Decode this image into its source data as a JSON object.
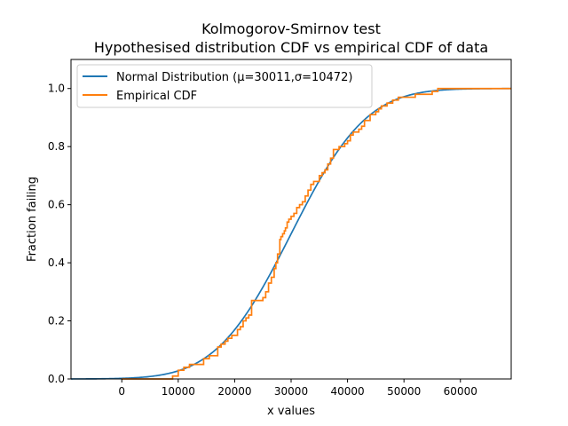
{
  "chart_data": {
    "type": "line",
    "title_line1": "Kolmogorov-Smirnov test",
    "title_line2": "Hypothesised distribution CDF vs empirical CDF of data",
    "xlabel": "x values",
    "ylabel": "Fraction failing",
    "xlim": [
      -9000,
      69000
    ],
    "ylim": [
      0,
      1.1
    ],
    "x_ticks": [
      0,
      10000,
      20000,
      30000,
      40000,
      50000,
      60000
    ],
    "y_ticks": [
      0.0,
      0.2,
      0.4,
      0.6,
      0.8,
      1.0
    ],
    "x_tick_labels": [
      "0",
      "10000",
      "20000",
      "30000",
      "40000",
      "50000",
      "60000"
    ],
    "y_tick_labels": [
      "0.0",
      "0.2",
      "0.4",
      "0.6",
      "0.8",
      "1.0"
    ],
    "grid": false,
    "legend_position": "top-left",
    "series": [
      {
        "name": "Normal Distribution (μ=30011,σ=10472)",
        "kind": "normal_cdf",
        "mu": 30011,
        "sigma": 10472,
        "color": "#1f77b4"
      },
      {
        "name": "Empirical CDF",
        "kind": "step",
        "color": "#ff7f0e",
        "x": [
          9000,
          10000,
          11000,
          12000,
          14500,
          15500,
          17000,
          17600,
          18300,
          18800,
          19500,
          20500,
          21000,
          21500,
          22000,
          22500,
          23000,
          23500,
          25000,
          25500,
          26000,
          26500,
          27000,
          27300,
          27600,
          28000,
          28200,
          28500,
          28800,
          29000,
          29300,
          29600,
          30000,
          30500,
          31000,
          31500,
          32000,
          32500,
          33000,
          33500,
          34000,
          35000,
          35500,
          36000,
          36500,
          37000,
          37500,
          38500,
          39500,
          40000,
          40500,
          41000,
          42000,
          42500,
          43000,
          44000,
          45000,
          45500,
          46000,
          47000,
          48000,
          49000,
          52000,
          55000,
          56000
        ],
        "y": [
          0.01,
          0.03,
          0.04,
          0.05,
          0.07,
          0.08,
          0.11,
          0.12,
          0.13,
          0.14,
          0.15,
          0.17,
          0.18,
          0.2,
          0.21,
          0.22,
          0.27,
          0.27,
          0.28,
          0.3,
          0.33,
          0.35,
          0.38,
          0.4,
          0.43,
          0.48,
          0.49,
          0.5,
          0.51,
          0.52,
          0.54,
          0.55,
          0.56,
          0.57,
          0.59,
          0.6,
          0.61,
          0.63,
          0.65,
          0.67,
          0.68,
          0.7,
          0.71,
          0.72,
          0.74,
          0.76,
          0.79,
          0.8,
          0.81,
          0.82,
          0.84,
          0.85,
          0.86,
          0.87,
          0.89,
          0.91,
          0.92,
          0.93,
          0.94,
          0.95,
          0.96,
          0.97,
          0.98,
          0.99,
          1.0
        ]
      }
    ]
  }
}
